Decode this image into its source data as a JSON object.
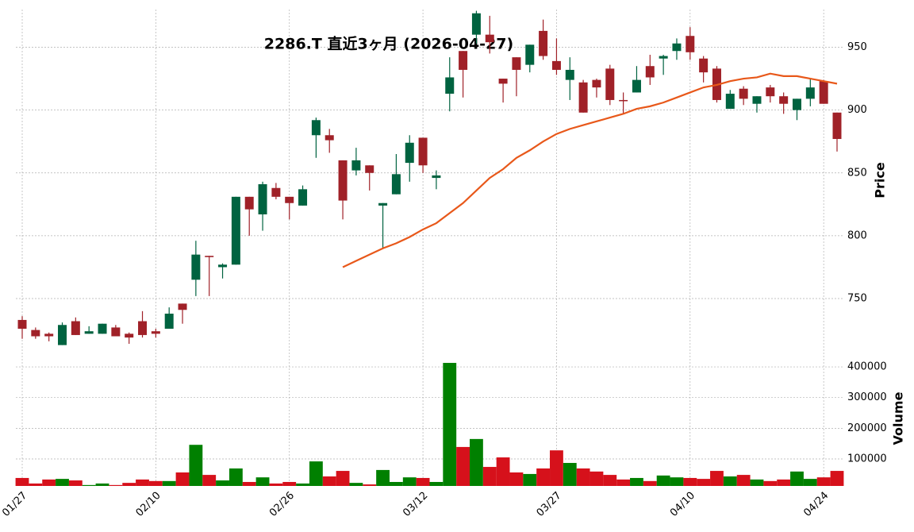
{
  "chart_data": {
    "type": "candlestick",
    "title": "2286.T  直近3ヶ月  (2026-04-27)",
    "categories": [
      "01/27",
      null,
      null,
      null,
      null,
      null,
      null,
      null,
      null,
      null,
      "02/10",
      null,
      null,
      null,
      null,
      null,
      null,
      null,
      null,
      null,
      "02/26",
      null,
      null,
      null,
      null,
      null,
      null,
      null,
      null,
      null,
      "03/12",
      null,
      null,
      null,
      null,
      null,
      null,
      null,
      null,
      null,
      "03/27",
      null,
      null,
      null,
      null,
      null,
      null,
      null,
      null,
      null,
      "04/10",
      null,
      null,
      null,
      null,
      null,
      null,
      null,
      null,
      null,
      "04/24",
      null
    ],
    "open": [
      733,
      725,
      722,
      713,
      732,
      722,
      722,
      727,
      722,
      732,
      724,
      726,
      746,
      765,
      784,
      775,
      777,
      831,
      817,
      838,
      831,
      824,
      880,
      880,
      860,
      852,
      856,
      824,
      833,
      858,
      878,
      846,
      913,
      947,
      960,
      960,
      925,
      942,
      936,
      963,
      939,
      924,
      922,
      924,
      933,
      908,
      914,
      935,
      941,
      947,
      959,
      941,
      933,
      901,
      917,
      905,
      918,
      911,
      900,
      909,
      923,
      898
    ],
    "high": [
      736,
      727,
      723,
      731,
      735,
      728,
      730,
      729,
      723,
      740,
      726,
      743,
      746,
      796,
      784,
      778,
      831,
      831,
      843,
      842,
      831,
      840,
      894,
      885,
      860,
      870,
      856,
      826,
      865,
      880,
      878,
      852,
      942,
      947,
      979,
      975,
      925,
      942,
      952,
      972,
      957,
      942,
      924,
      925,
      936,
      914,
      935,
      944,
      944,
      957,
      966,
      943,
      935,
      916,
      919,
      911,
      920,
      914,
      909,
      925,
      924,
      898
    ],
    "low": [
      718,
      718,
      716,
      713,
      721,
      722,
      722,
      720,
      714,
      719,
      719,
      726,
      730,
      752,
      752,
      766,
      777,
      800,
      804,
      829,
      813,
      824,
      862,
      866,
      813,
      848,
      836,
      790,
      833,
      843,
      850,
      837,
      899,
      910,
      953,
      945,
      906,
      911,
      930,
      940,
      928,
      908,
      898,
      910,
      904,
      897,
      914,
      920,
      928,
      940,
      940,
      922,
      906,
      901,
      904,
      898,
      906,
      897,
      892,
      903,
      905,
      867
    ],
    "close": [
      726,
      720,
      720,
      729,
      721,
      724,
      730,
      720,
      719,
      721,
      722,
      738,
      741,
      785,
      783,
      777,
      831,
      821,
      841,
      831,
      826,
      837,
      892,
      876,
      828,
      860,
      850,
      826,
      849,
      874,
      856,
      848,
      926,
      932,
      977,
      954,
      921,
      932,
      952,
      943,
      932,
      932,
      898,
      918,
      908,
      907.5,
      924,
      926,
      943,
      953,
      946,
      930,
      908,
      913,
      909,
      911,
      911,
      905,
      909,
      918,
      905,
      877
    ],
    "volume": {
      "name": "Volume",
      "values": [
        38000,
        20000,
        33000,
        35000,
        30000,
        15000,
        20000,
        15000,
        22000,
        33000,
        28000,
        28000,
        56000,
        146000,
        48000,
        30000,
        69000,
        25000,
        40000,
        20000,
        25000,
        20000,
        92000,
        43000,
        61000,
        22000,
        17000,
        64000,
        25000,
        40000,
        38000,
        25000,
        413000,
        139000,
        165000,
        74000,
        105000,
        56000,
        51000,
        69000,
        128000,
        87000,
        69000,
        59000,
        48000,
        33000,
        38000,
        28000,
        46000,
        40000,
        38000,
        35000,
        61000,
        43000,
        48000,
        33000,
        28000,
        33000,
        59000,
        35000,
        40000,
        61000
      ]
    },
    "ma": {
      "color": "#e8581a",
      "values": [
        null,
        null,
        null,
        null,
        null,
        null,
        null,
        null,
        null,
        null,
        null,
        null,
        null,
        null,
        null,
        null,
        null,
        null,
        null,
        null,
        null,
        null,
        null,
        null,
        775,
        780,
        785,
        790,
        794,
        799,
        805,
        810,
        818,
        826,
        836,
        846,
        853,
        862,
        868,
        875,
        881,
        885,
        888,
        891,
        894,
        897,
        901,
        903,
        906,
        910,
        914,
        918,
        920,
        923,
        925,
        926,
        929,
        927,
        927,
        925,
        923,
        921
      ]
    },
    "up_color": "#006340",
    "down_color": "#a02128",
    "volume_up_color": "#008000",
    "volume_down_color": "#d6111b",
    "ylabel": "Price",
    "y2label": "Volume",
    "ylim": [
      702,
      980
    ],
    "yticks": [
      750,
      800,
      850,
      900,
      950
    ],
    "y2lim": [
      12000,
      426000
    ],
    "y2ticks": [
      100000,
      200000,
      300000,
      400000
    ],
    "grid": true
  }
}
